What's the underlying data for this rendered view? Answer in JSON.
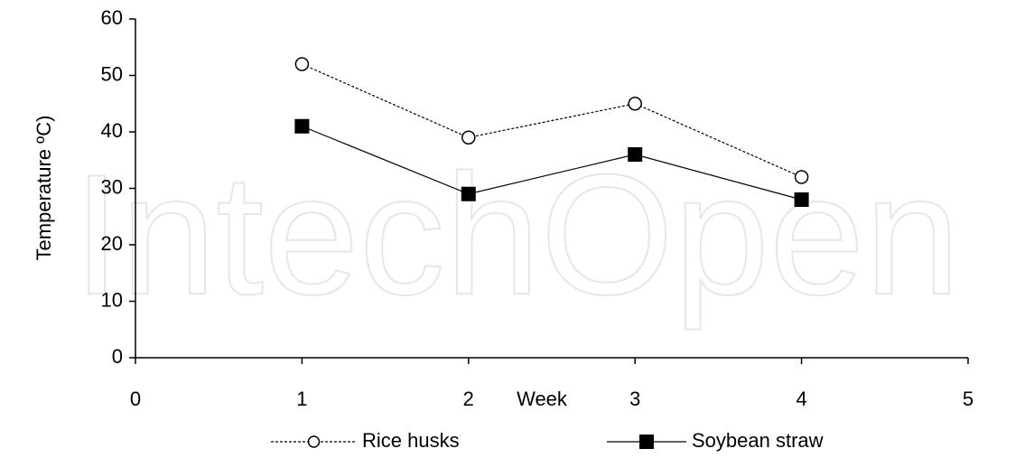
{
  "watermark": "IntechOpen",
  "chart_data": {
    "type": "line",
    "x_label": "Week",
    "y_label": "Temperature ºC)",
    "xlim": [
      0,
      5
    ],
    "xticks": [
      0,
      1,
      2,
      3,
      4,
      5
    ],
    "ylim": [
      0,
      60
    ],
    "yticks": [
      0,
      10,
      20,
      30,
      40,
      50,
      60
    ],
    "x": [
      1,
      2,
      3,
      4
    ],
    "series": [
      {
        "name": "Rice husks",
        "color": "#000000",
        "marker": "circle",
        "linestyle": "dashed",
        "values": [
          52,
          39,
          45,
          32
        ]
      },
      {
        "name": "Soybean straw",
        "color": "#000000",
        "marker": "square",
        "linestyle": "solid",
        "values": [
          41,
          29,
          36,
          28
        ]
      }
    ],
    "legend": "bottom"
  }
}
